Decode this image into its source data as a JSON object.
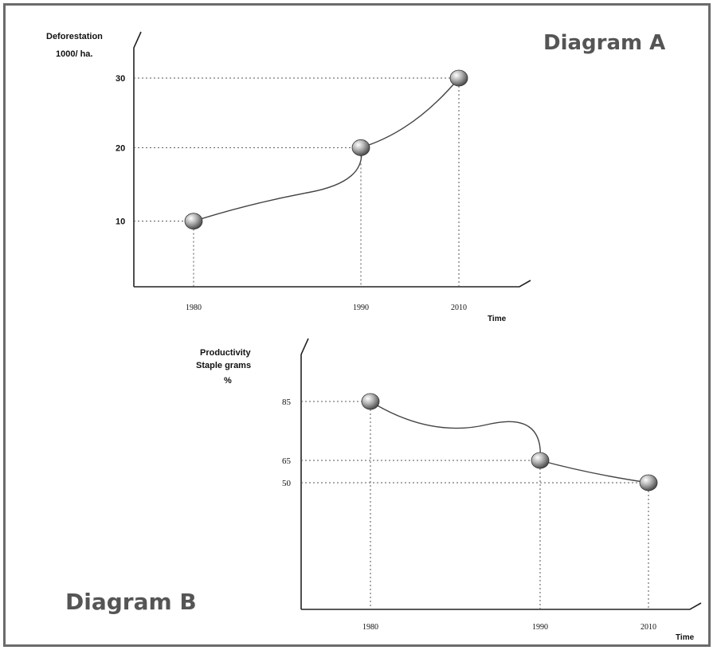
{
  "chart_data": [
    {
      "id": "A",
      "type": "line",
      "title": "Diagram A",
      "ylabel_lines": [
        "Deforestation",
        "1000/ ha."
      ],
      "xlabel": "Time",
      "x": [
        1980,
        1990,
        2010
      ],
      "x_tick_labels": [
        "1980",
        "1990",
        "2010"
      ],
      "y_tick_values": [
        10,
        20,
        30
      ],
      "y_tick_labels": [
        "10",
        "20",
        "30"
      ],
      "series": [
        {
          "values": [
            10,
            20,
            30
          ]
        }
      ],
      "ylim": [
        0,
        33
      ],
      "grid": false
    },
    {
      "id": "B",
      "type": "line",
      "title": "Diagram B",
      "ylabel_lines": [
        "Productivity",
        "Staple grams",
        "%"
      ],
      "xlabel": "Time",
      "x": [
        1980,
        1990,
        2010
      ],
      "x_tick_labels": [
        "1980",
        "1990",
        "2010"
      ],
      "y_tick_values": [
        85,
        65,
        50
      ],
      "y_tick_labels": [
        "85",
        "65",
        "50"
      ],
      "series": [
        {
          "values": [
            85,
            65,
            50
          ]
        }
      ],
      "ylim": [
        0,
        90
      ],
      "grid": false
    }
  ],
  "colors": {
    "frame": "#6b6b6b",
    "title": "#555555",
    "marker": "#888888"
  }
}
